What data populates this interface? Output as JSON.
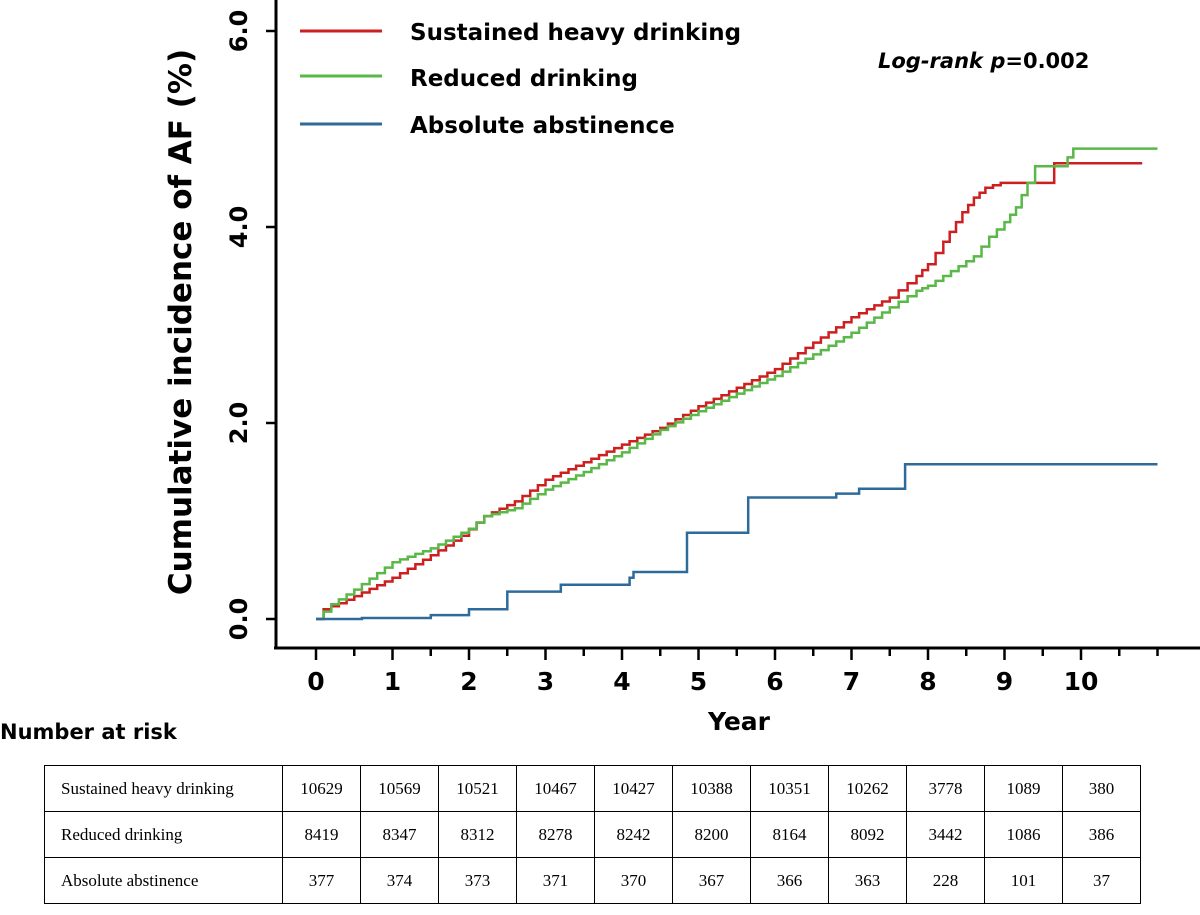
{
  "chart_data": {
    "type": "line",
    "ylabel": "Cumulative incidence of AF (%)",
    "xlabel": "Year",
    "yticks": [
      "0.0",
      "2.0",
      "4.0",
      "6.0"
    ],
    "xticks": [
      "0",
      "1",
      "2",
      "3",
      "4",
      "5",
      "6",
      "7",
      "8",
      "9",
      "10"
    ],
    "xlim": [
      0,
      11
    ],
    "ylim": [
      0,
      6
    ],
    "annotation": {
      "prefix": "Log-rank ",
      "p": "p",
      "value": "=0.002"
    },
    "legend_position": "top-left",
    "series": [
      {
        "name": "Sustained heavy drinking",
        "color": "#cc1f1f",
        "points": [
          [
            0,
            0
          ],
          [
            0.1,
            0.1
          ],
          [
            0.3,
            0.16
          ],
          [
            0.6,
            0.27
          ],
          [
            1.0,
            0.42
          ],
          [
            1.5,
            0.65
          ],
          [
            1.9,
            0.85
          ],
          [
            2.2,
            1.05
          ],
          [
            2.6,
            1.2
          ],
          [
            3.0,
            1.42
          ],
          [
            3.5,
            1.6
          ],
          [
            4.0,
            1.78
          ],
          [
            4.5,
            1.95
          ],
          [
            5.0,
            2.17
          ],
          [
            5.5,
            2.36
          ],
          [
            6.0,
            2.55
          ],
          [
            6.5,
            2.82
          ],
          [
            7.0,
            3.08
          ],
          [
            7.5,
            3.28
          ],
          [
            7.85,
            3.5
          ],
          [
            8.0,
            3.62
          ],
          [
            8.2,
            3.85
          ],
          [
            8.45,
            4.15
          ],
          [
            8.6,
            4.3
          ],
          [
            8.75,
            4.4
          ],
          [
            8.95,
            4.45
          ],
          [
            9.6,
            4.45
          ],
          [
            9.65,
            4.65
          ],
          [
            10.8,
            4.65
          ]
        ]
      },
      {
        "name": "Reduced drinking",
        "color": "#5ab848",
        "points": [
          [
            0,
            0
          ],
          [
            0.2,
            0.15
          ],
          [
            0.5,
            0.3
          ],
          [
            1.0,
            0.58
          ],
          [
            1.5,
            0.72
          ],
          [
            2.0,
            0.92
          ],
          [
            2.2,
            1.05
          ],
          [
            2.6,
            1.13
          ],
          [
            3.0,
            1.32
          ],
          [
            3.5,
            1.5
          ],
          [
            4.0,
            1.7
          ],
          [
            4.5,
            1.93
          ],
          [
            5.0,
            2.12
          ],
          [
            5.5,
            2.3
          ],
          [
            6.0,
            2.48
          ],
          [
            6.5,
            2.7
          ],
          [
            7.0,
            2.92
          ],
          [
            7.5,
            3.18
          ],
          [
            7.85,
            3.35
          ],
          [
            8.0,
            3.4
          ],
          [
            8.3,
            3.55
          ],
          [
            8.6,
            3.7
          ],
          [
            8.8,
            3.9
          ],
          [
            9.0,
            4.05
          ],
          [
            9.15,
            4.2
          ],
          [
            9.3,
            4.45
          ],
          [
            9.4,
            4.62
          ],
          [
            9.75,
            4.62
          ],
          [
            9.9,
            4.8
          ],
          [
            11.0,
            4.8
          ]
        ]
      },
      {
        "name": "Absolute abstinence",
        "color": "#2e6a9a",
        "points": [
          [
            0,
            0
          ],
          [
            0.6,
            0.01
          ],
          [
            1.5,
            0.04
          ],
          [
            2.0,
            0.1
          ],
          [
            2.5,
            0.28
          ],
          [
            3.2,
            0.35
          ],
          [
            4.1,
            0.42
          ],
          [
            4.15,
            0.48
          ],
          [
            4.85,
            0.88
          ],
          [
            5.65,
            1.24
          ],
          [
            6.8,
            1.28
          ],
          [
            7.1,
            1.33
          ],
          [
            7.7,
            1.58
          ],
          [
            11.0,
            1.58
          ]
        ]
      }
    ],
    "risk_table": {
      "title": "Number at risk",
      "rows": [
        {
          "label": "Sustained heavy drinking",
          "values": [
            "10629",
            "10569",
            "10521",
            "10467",
            "10427",
            "10388",
            "10351",
            "10262",
            "3778",
            "1089",
            "380"
          ]
        },
        {
          "label": "Reduced drinking",
          "values": [
            "8419",
            "8347",
            "8312",
            "8278",
            "8242",
            "8200",
            "8164",
            "8092",
            "3442",
            "1086",
            "386"
          ]
        },
        {
          "label": "Absolute abstinence",
          "values": [
            "377",
            "374",
            "373",
            "371",
            "370",
            "367",
            "366",
            "363",
            "228",
            "101",
            "37"
          ]
        }
      ]
    }
  }
}
